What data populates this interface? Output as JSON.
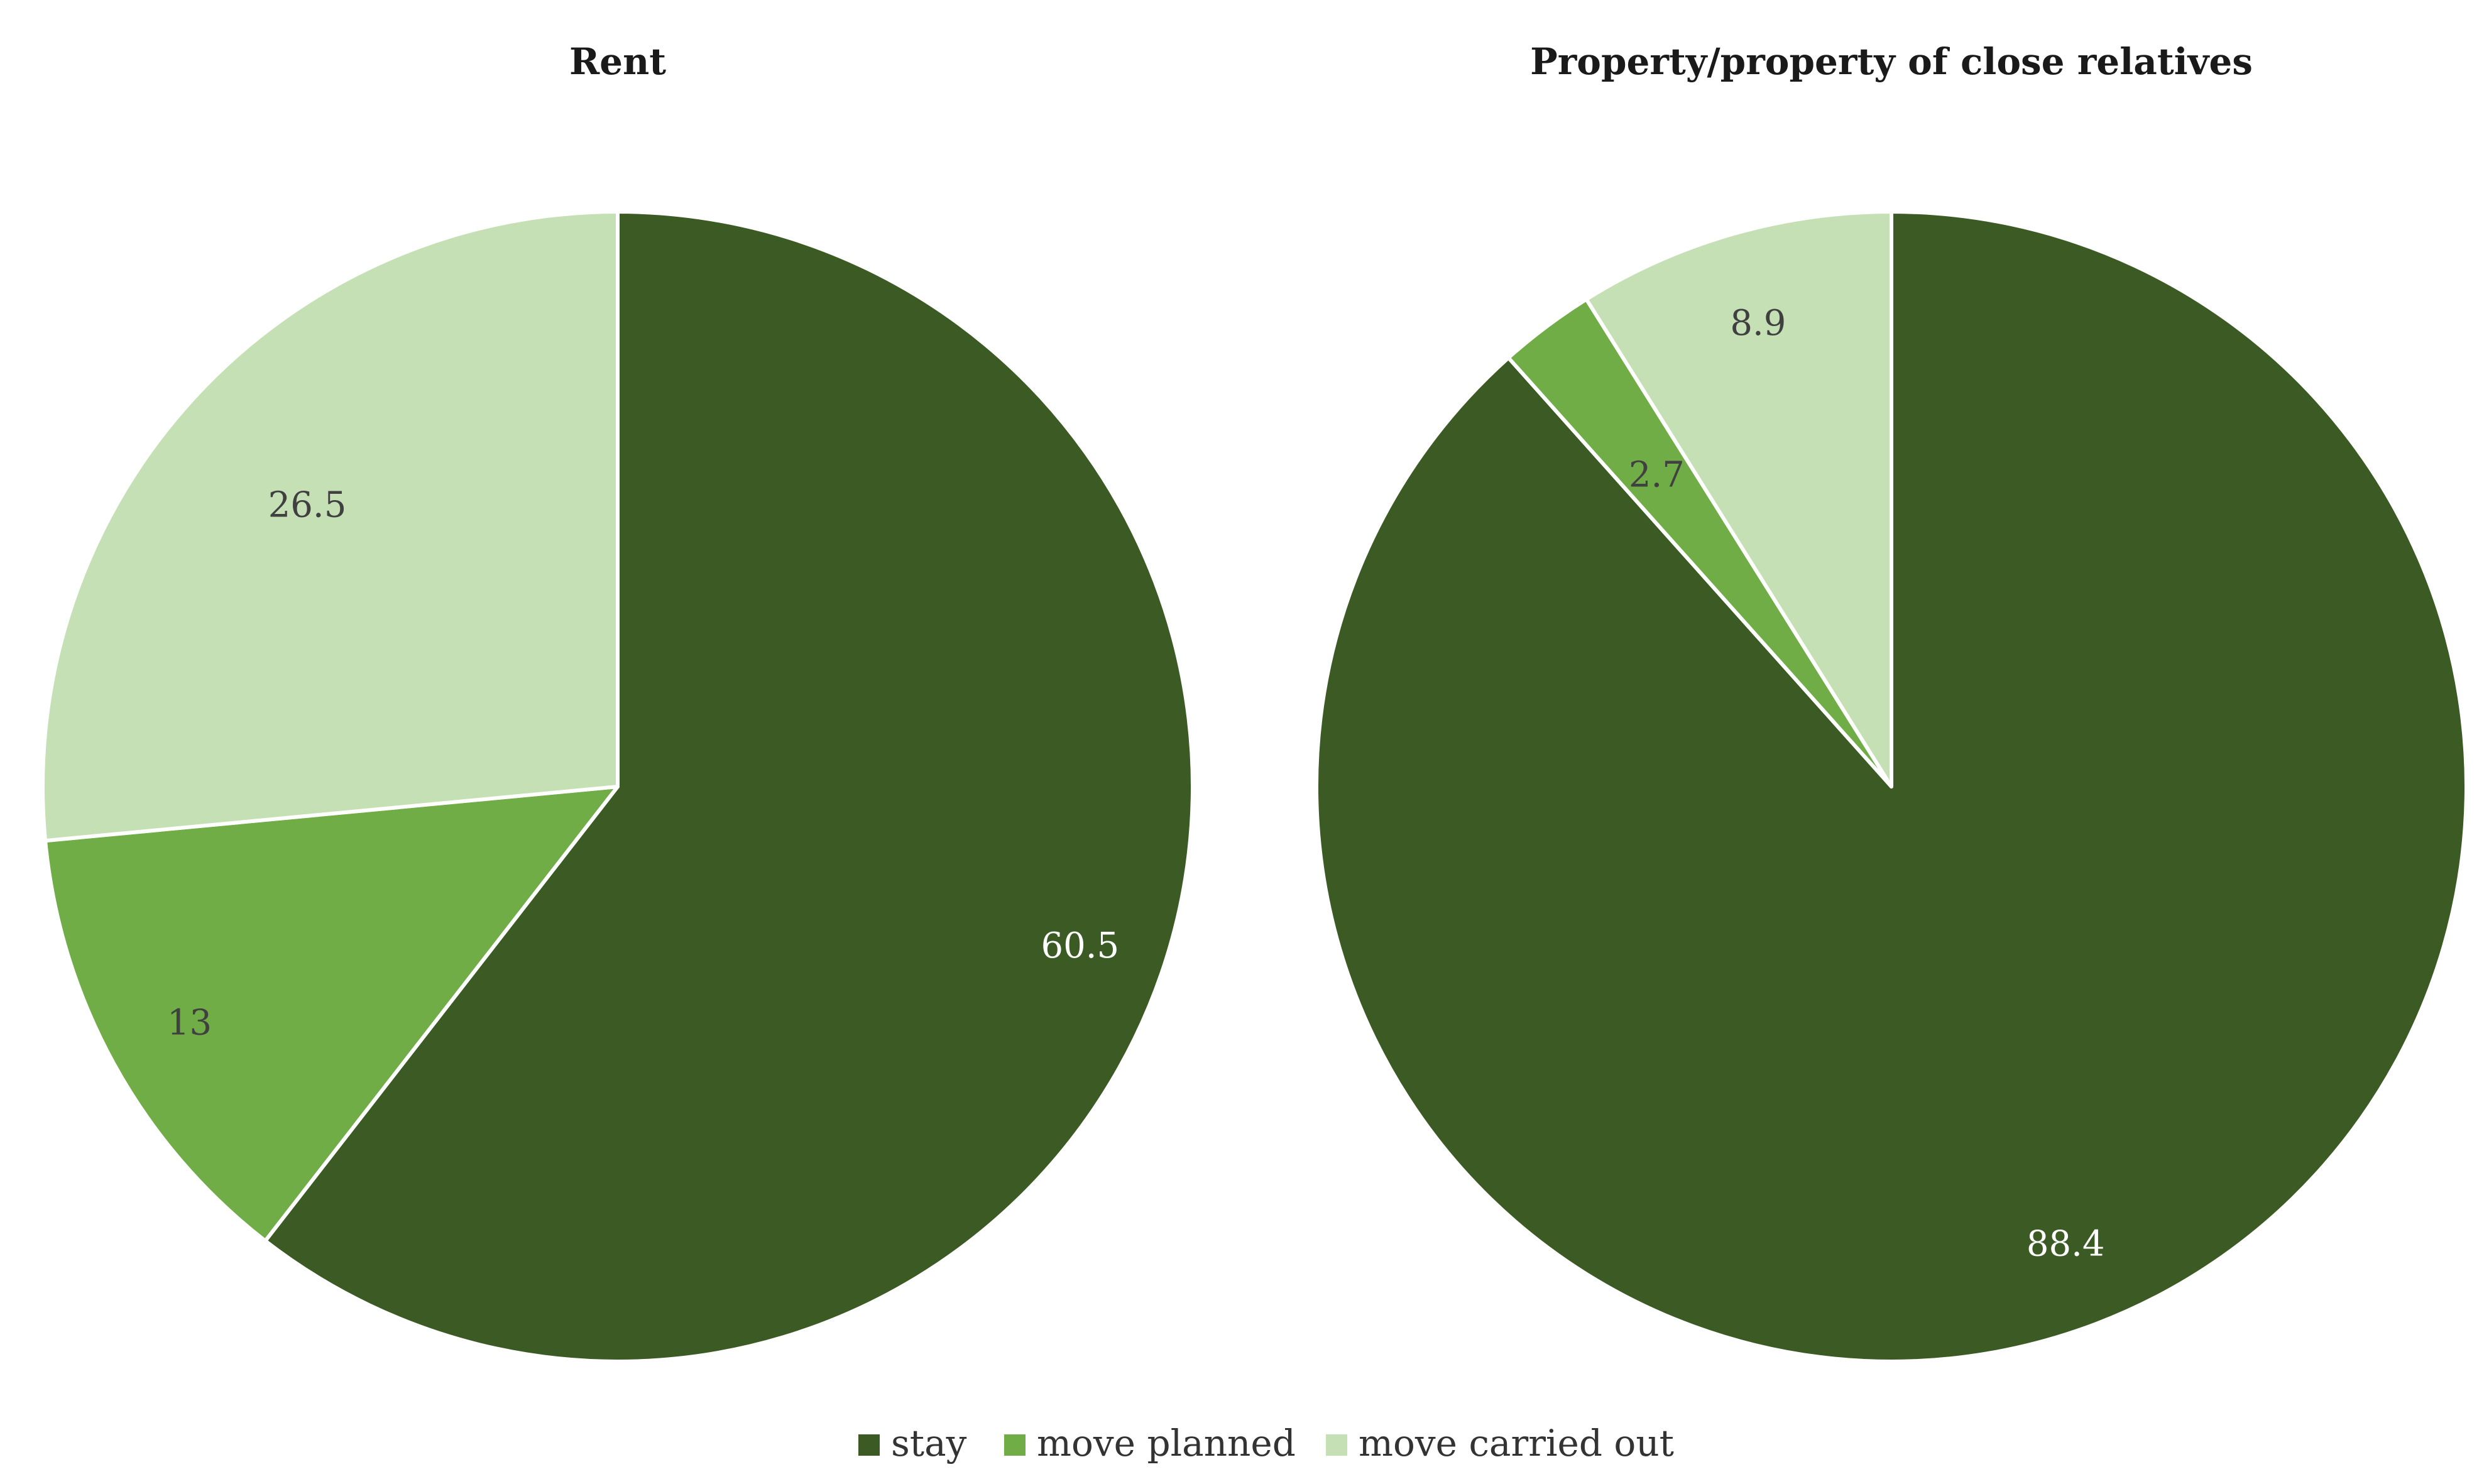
{
  "chart_data": [
    {
      "type": "pie",
      "title": "Rent",
      "categories": [
        "stay",
        "move planned",
        "move carried out"
      ],
      "values": [
        60.5,
        13,
        26.5
      ],
      "labels": [
        "60.5",
        "13",
        "26.5"
      ],
      "start_angle_deg": 0,
      "direction": "clockwise"
    },
    {
      "type": "pie",
      "title": "Property/property of close relatives",
      "categories": [
        "stay",
        "move planned",
        "move carried out"
      ],
      "values": [
        88.4,
        2.7,
        8.9
      ],
      "labels": [
        "88.4",
        "2.7",
        "8.9"
      ],
      "start_angle_deg": 0,
      "direction": "clockwise"
    }
  ],
  "legend": {
    "placement": "bottom-center",
    "items": [
      {
        "label": "stay",
        "color": "#3b5a24"
      },
      {
        "label": "move planned",
        "color": "#70ad47"
      },
      {
        "label": "move carried out",
        "color": "#c5e0b4"
      }
    ]
  },
  "colors": {
    "stay": "#3b5a24",
    "move_planned": "#70ad47",
    "move_carried_out": "#c5e0b4",
    "label_on_dark": "#ffffff",
    "label_on_light": "#404040",
    "slice_border": "#ffffff"
  }
}
